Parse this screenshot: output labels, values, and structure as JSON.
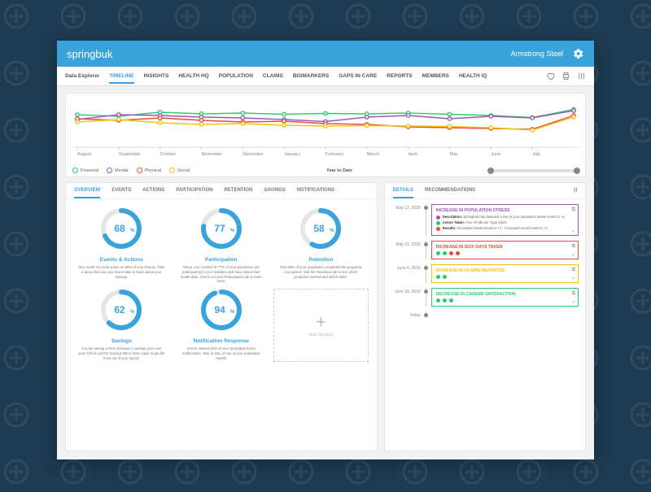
{
  "brand": "springbuk",
  "org": "Armstrong Steel",
  "nav": {
    "label": "Data Explorer",
    "tabs": [
      "TIMELINE",
      "INSIGHTS",
      "HEALTH HQ",
      "POPULATION",
      "CLAIMS",
      "BIOMARKERS",
      "GAPS IN CARE",
      "REPORTS",
      "MEMBERS",
      "HEALTH IQ"
    ],
    "active": 0
  },
  "chart": {
    "months": [
      "August",
      "September",
      "October",
      "November",
      "December",
      "January",
      "February",
      "March",
      "April",
      "May",
      "June",
      "July"
    ],
    "yRange": [
      0,
      100
    ],
    "series": [
      {
        "name": "Financial",
        "color": "#2ecc71",
        "points": [
          72,
          68,
          78,
          74,
          76,
          73,
          75,
          74,
          76,
          73,
          70,
          65,
          85
        ]
      },
      {
        "name": "Mental",
        "color": "#9b59b6",
        "points": [
          60,
          72,
          70,
          66,
          64,
          60,
          55,
          66,
          70,
          62,
          68,
          64,
          82
        ]
      },
      {
        "name": "Physical",
        "color": "#e74c3c",
        "points": [
          62,
          58,
          64,
          58,
          54,
          56,
          50,
          48,
          42,
          40,
          38,
          36,
          70
        ]
      },
      {
        "name": "Social",
        "color": "#f1c40f",
        "points": [
          54,
          60,
          52,
          48,
          50,
          46,
          44,
          45,
          44,
          43,
          40,
          34,
          66
        ]
      }
    ],
    "ytd_label": "Year to Date"
  },
  "overview": {
    "tabs": [
      "OVERVIEW",
      "EVENTS",
      "ACTIONS",
      "PARTICIPATION",
      "RETENTION",
      "SAVINGS",
      "NOTIFICATIONS"
    ],
    "active": 0,
    "metrics": [
      {
        "value": 68,
        "title": "Events & Actions",
        "desc": "Nice work! You took action on 68% of your Events. Take a deep dive into your Event data to learn about your savings."
      },
      {
        "value": 77,
        "title": "Participation",
        "desc": "Whoa, you crushed it! 77% of your population are participating in your activities and have linked their health data. Check out your Participation tab to learn more."
      },
      {
        "value": 58,
        "title": "Retention",
        "desc": "Only 58% of your population completed the programs you picked. Visit the Retention tab to see which programs worked and which didn't."
      },
      {
        "value": 62,
        "title": "Savings",
        "desc": "You are seeing a 62% increase in savings year over year! Check out the Savings tab to learn ways to get the most out of your spend."
      },
      {
        "value": 94,
        "title": "Notification Response",
        "desc": "You've viewed 94% of your Springbuk Event notifications. Way to stay on top of your population health!"
      }
    ],
    "add": "Add Section"
  },
  "details": {
    "tabs": [
      "DETAILS",
      "RECOMMENDATIONS"
    ],
    "active": 0,
    "today": "Today",
    "events": [
      {
        "date": "May 12, 2018",
        "color": "#9b59b6",
        "title": "INCREASE IN POPULATION STRESS",
        "expanded": true,
        "dots": [
          "#2ecc71",
          "#2ecc71",
          "#2ecc71"
        ],
        "body": [
          {
            "dot": "#9b59b6",
            "label": "Description:",
            "text": "Springbuk has detected a rise in your population stress levels to +3."
          },
          {
            "dot": "#2ecc71",
            "label": "Action Taken:",
            "text": "Free 30 Minute Yoga Class"
          },
          {
            "dot": "#e74c3c",
            "label": "Results:",
            "text": "Decreased stress levels to +1 · Increased mood levels to +2"
          }
        ]
      },
      {
        "date": "May 31, 2018",
        "color": "#e74c3c",
        "title": "INCREASE IN SICK DAYS TAKEN",
        "dots": [
          "#2ecc71",
          "#2ecc71",
          "#e74c3c",
          "#e74c3c"
        ]
      },
      {
        "date": "June 6, 2018",
        "color": "#f1c40f",
        "title": "INCREASE IN CLAIMS REPORTED",
        "dots": [
          "#2ecc71",
          "#2ecc71"
        ]
      },
      {
        "date": "June 18, 2018",
        "color": "#2ecc71",
        "title": "DECREASE IN CAREER SATISFACTION",
        "dots": [
          "#2ecc71",
          "#2ecc71",
          "#2ecc71"
        ]
      }
    ]
  },
  "colors": {
    "accent": "#39a4dc"
  }
}
